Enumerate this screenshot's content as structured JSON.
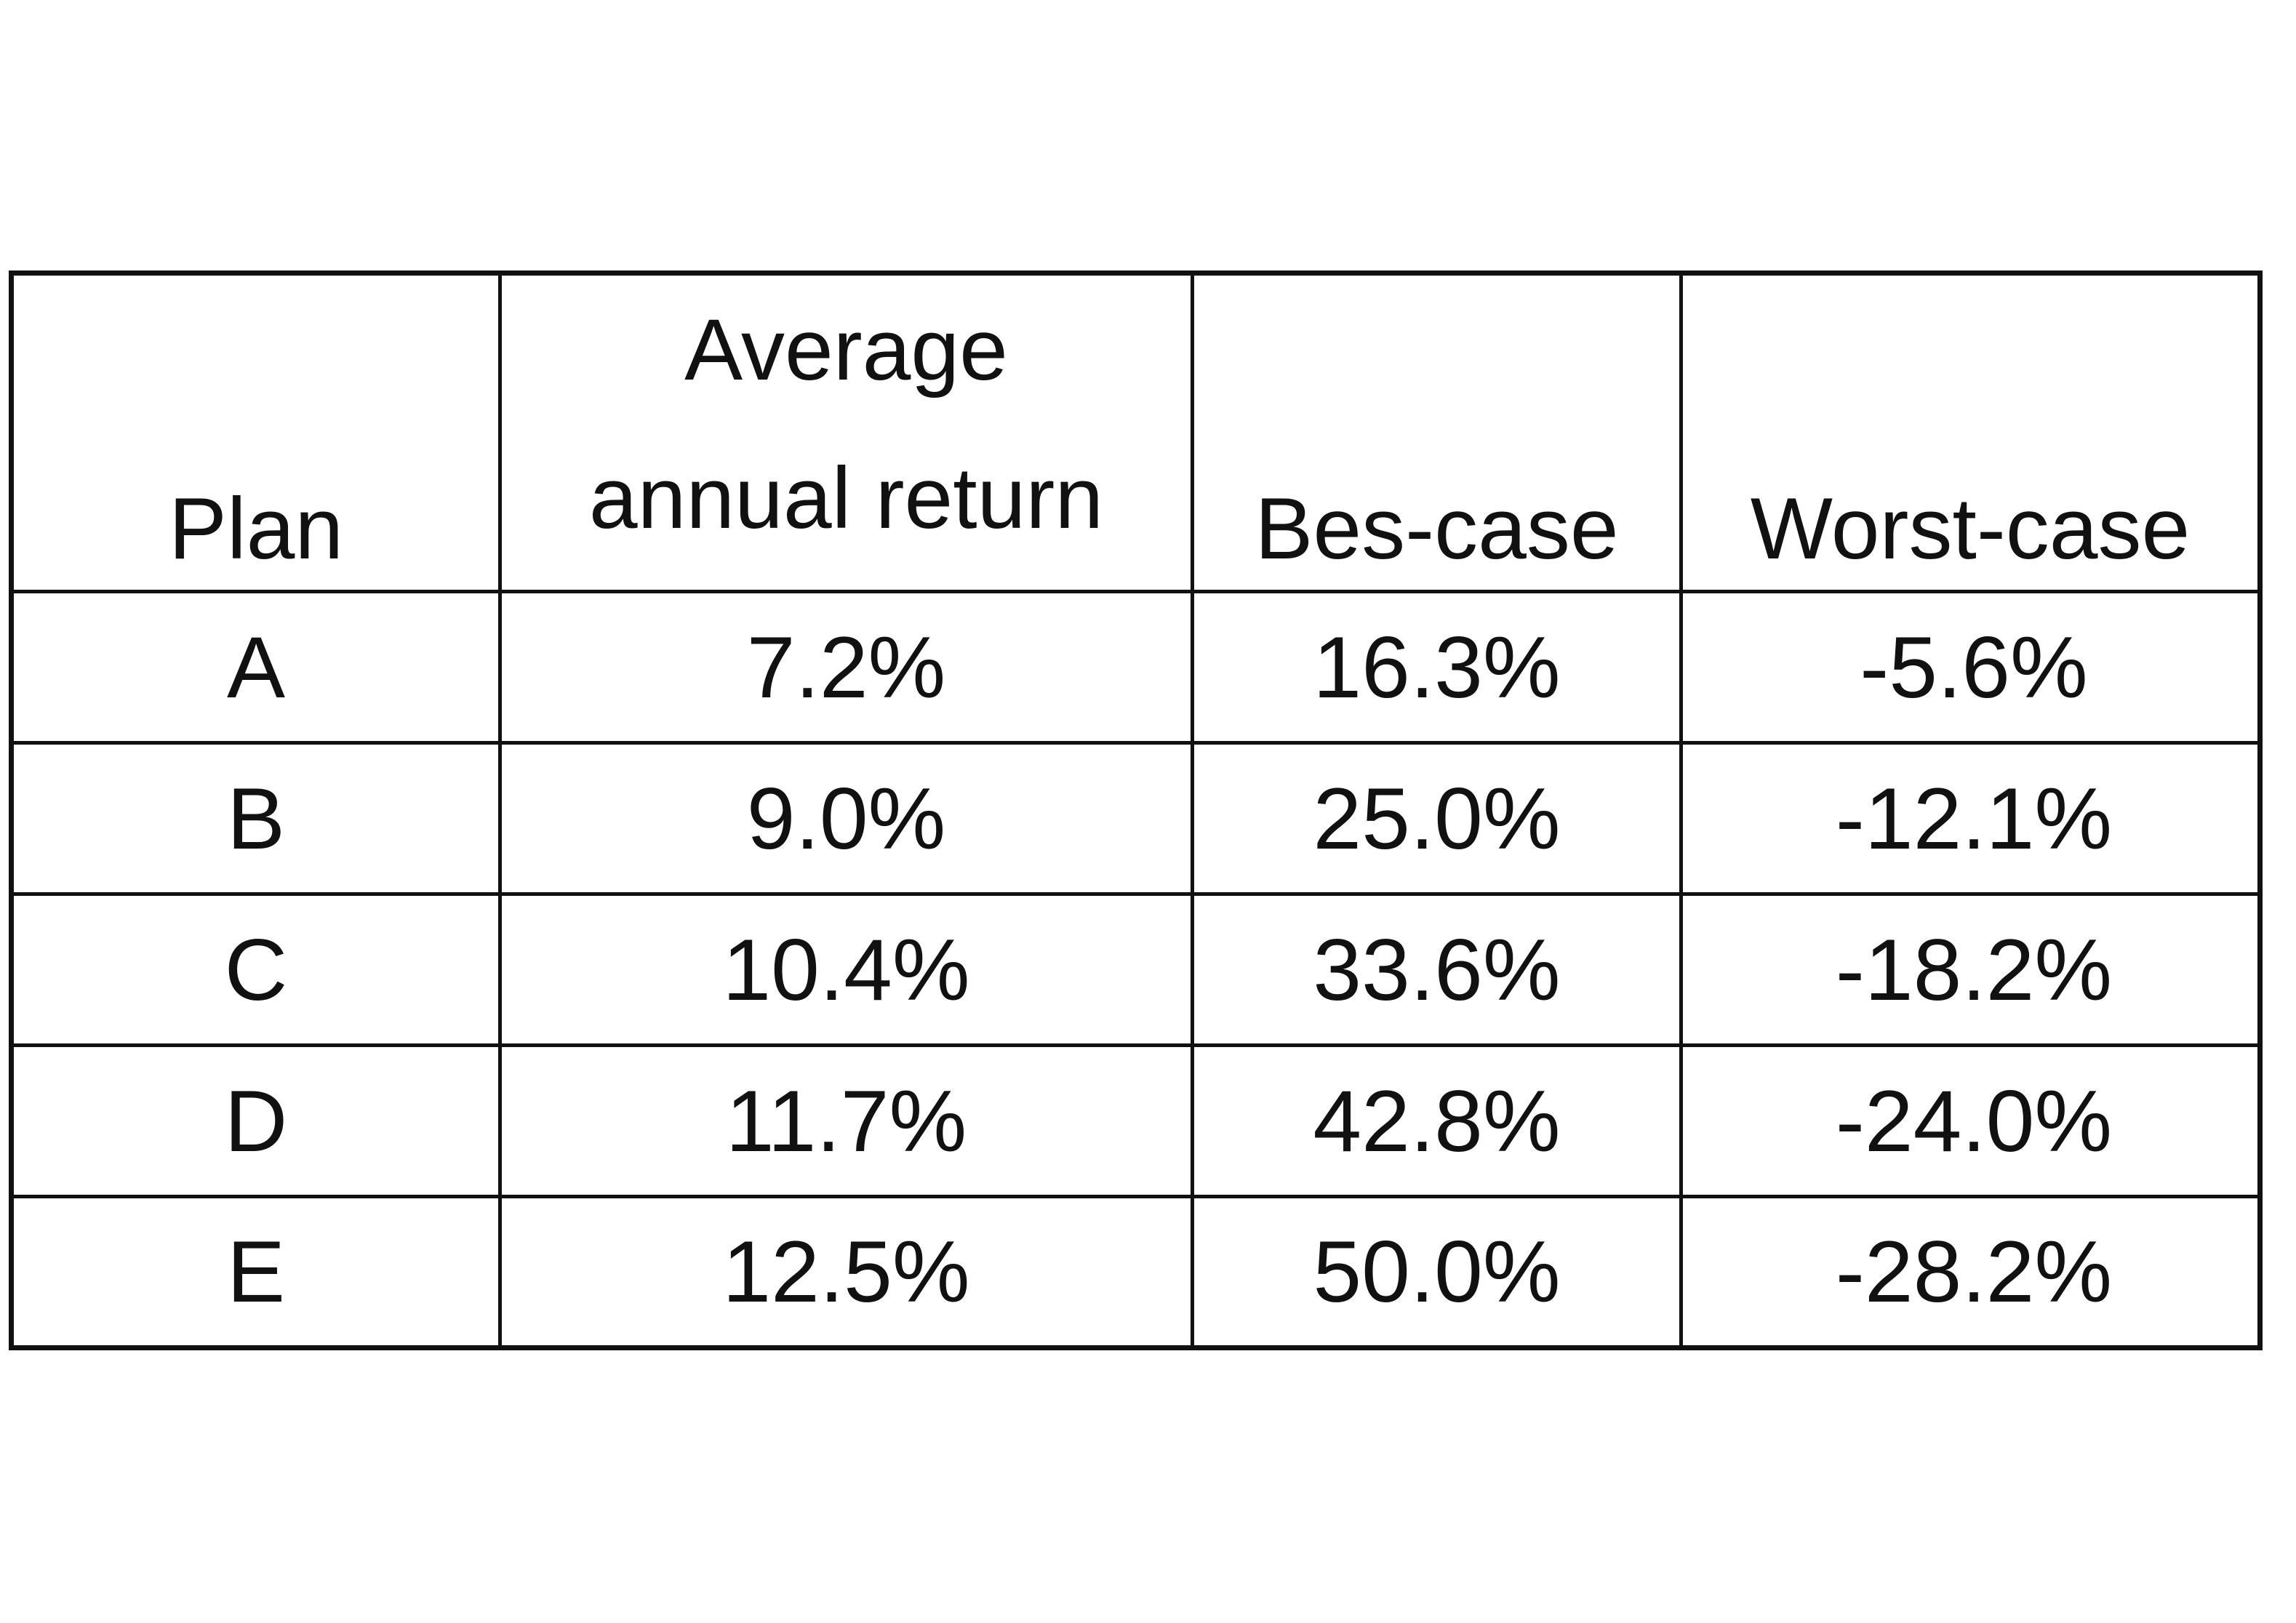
{
  "table": {
    "headers": {
      "plan": "Plan",
      "average_line1": "Average",
      "average_line2": "annual return",
      "best_case": "Bes-case",
      "worst_case": "Worst-case"
    },
    "rows": [
      {
        "plan": "A",
        "average": "7.2%",
        "best": "16.3%",
        "worst": "-5.6%"
      },
      {
        "plan": "B",
        "average": "9.0%",
        "best": "25.0%",
        "worst": "-12.1%"
      },
      {
        "plan": "C",
        "average": "10.4%",
        "best": "33.6%",
        "worst": "-18.2%"
      },
      {
        "plan": "D",
        "average": "11.7%",
        "best": "42.8%",
        "worst": "-24.0%"
      },
      {
        "plan": "E",
        "average": "12.5%",
        "best": "50.0%",
        "worst": "-28.2%"
      }
    ]
  }
}
